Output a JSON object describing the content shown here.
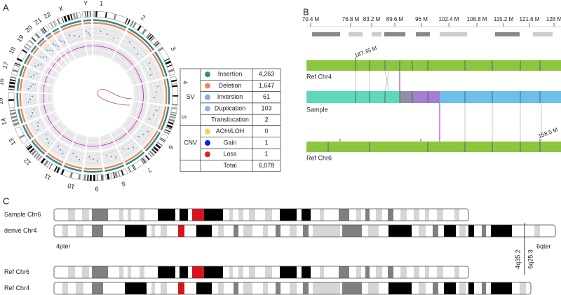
{
  "panel_labels": [
    "A",
    "B",
    "C"
  ],
  "circos": {
    "chromosomes": [
      "1",
      "2",
      "3",
      "4",
      "5",
      "6",
      "7",
      "8",
      "9",
      "10",
      "11",
      "12",
      "13",
      "14",
      "15",
      "16",
      "17",
      "18",
      "19",
      "20",
      "21",
      "22",
      "X",
      "Y"
    ]
  },
  "table": {
    "groups": [
      {
        "name": "SV",
        "rows": [
          {
            "label": "Insertion",
            "color": "#2e8b8b",
            "count": "4,263"
          },
          {
            "label": "Deletion",
            "color": "#ea8660",
            "count": "1,647"
          },
          {
            "label": "Inversion",
            "color": "#7fb0d8",
            "count": "61"
          },
          {
            "label": "Duplication",
            "color": "#a7a7ee",
            "count": "103"
          },
          {
            "label": "Translocation",
            "count": "2"
          }
        ]
      },
      {
        "name": "CNV",
        "rows": [
          {
            "label": "AOH/LOH",
            "color": "#f1d15e",
            "count": "0"
          },
          {
            "label": "Gain",
            "color": "#1616ee",
            "count": "1"
          },
          {
            "label": "Loss",
            "color": "#e81e1e",
            "count": "1"
          }
        ]
      }
    ],
    "total": {
      "label": "Total",
      "count": "6,078"
    }
  },
  "panel_b": {
    "ticks": [
      "70.4 M",
      "76.8 M",
      "83.2 M",
      "89.6 M",
      "96 M",
      "102.4 M",
      "108.8 M",
      "115.2 M",
      "121.6 M",
      "128 M"
    ],
    "tracks": [
      "Ref Chr4",
      "Sample",
      "Ref Chr6"
    ],
    "annotations": [
      "187.35 M",
      "158.5 M"
    ]
  },
  "panel_c": {
    "tracks": [
      "Sample Chr6",
      "derive Chr4",
      "Ref Chr6",
      "Ref Chr4"
    ],
    "ends": [
      "4pter",
      "6qter"
    ],
    "breakpoints": [
      "4q35.2",
      "6q25.3"
    ]
  }
}
